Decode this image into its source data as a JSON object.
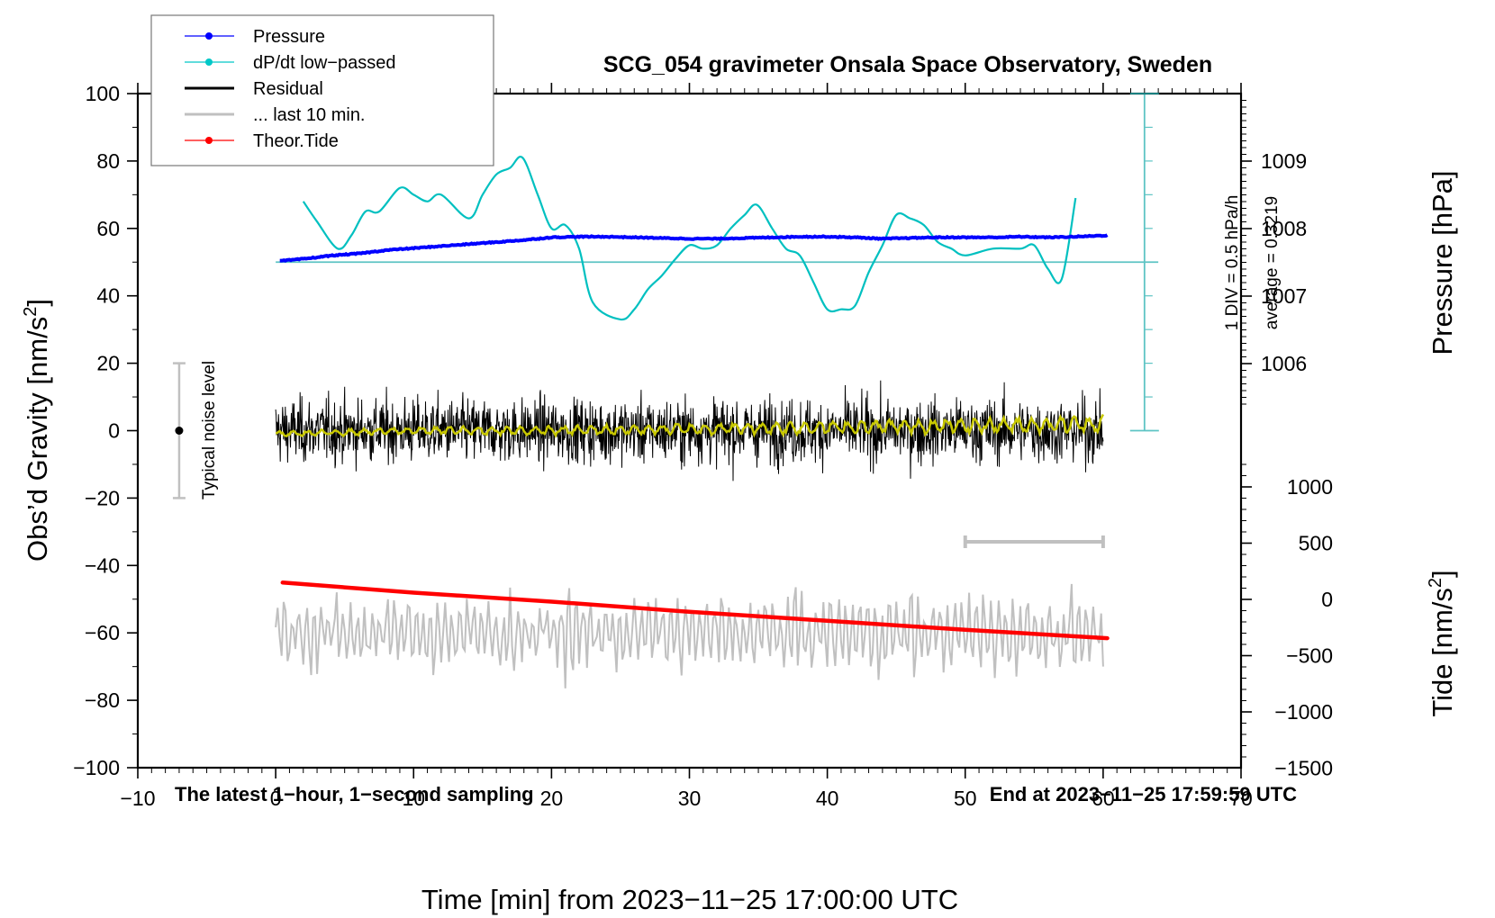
{
  "chart_data": {
    "type": "line",
    "title": "SCG_054 gravimeter Onsala Space Observatory, Sweden",
    "xlabel": "Time [min] from 2023−11−25 17:00:00 UTC",
    "ylabel_left": "Obs’d Gravity [nm/s²]",
    "ylabel_left_base": "Obs’d Gravity [nm/s",
    "ylabel_right_pressure": "Pressure [hPa]",
    "ylabel_right_tide_base": "Tide [nm/s",
    "units_sup": "2",
    "xlim": [
      -10,
      70
    ],
    "ylim": [
      -100,
      100
    ],
    "pressure_lim": [
      1005,
      1010
    ],
    "tide_lim": [
      -1500,
      1500
    ],
    "x_ticks": [
      -10,
      0,
      10,
      20,
      30,
      40,
      50,
      60,
      70
    ],
    "x_tick_labels": [
      "−10",
      "0",
      "10",
      "20",
      "30",
      "40",
      "50",
      "60",
      "70"
    ],
    "y_ticks": [
      100,
      80,
      60,
      40,
      20,
      0,
      -20,
      -40,
      -60,
      -80,
      -100
    ],
    "y_tick_labels": [
      "100",
      "80",
      "60",
      "40",
      "20",
      "0",
      "−20",
      "−40",
      "−60",
      "−80",
      "−100"
    ],
    "pressure_ticks": [
      1009,
      1008,
      1007,
      1006
    ],
    "pressure_tick_labels": [
      "1009",
      "1008",
      "1007",
      "1006"
    ],
    "tide_ticks": [
      1000,
      500,
      0,
      -500,
      -1000,
      -1500
    ],
    "tide_tick_labels": [
      "1000",
      "500",
      "0",
      "−500",
      "−1000",
      "−1500"
    ],
    "grid": false,
    "legend_position": "top-left",
    "legend": [
      {
        "label": "Pressure",
        "color": "#0000ff",
        "marker": true,
        "style": "thin"
      },
      {
        "label": "dP/dt low−passed",
        "color": "#00c8c8",
        "marker": true,
        "style": "thin"
      },
      {
        "label": "Residual",
        "color": "#000000",
        "marker": false,
        "style": "thick"
      },
      {
        "label": "... last 10 min.",
        "color": "#c0c0c0",
        "marker": false,
        "style": "thick"
      },
      {
        "label": "Theor.Tide",
        "color": "#ff0000",
        "marker": true,
        "style": "thin"
      }
    ],
    "annotations": {
      "dpdt_scale": "1 DIV = 0.5 hPa/h",
      "dpdt_average": "average = 0.3219",
      "noise_label": "Typical noise level",
      "noise_level_range": [
        -20,
        20
      ],
      "noise_x": -7,
      "last10_bar_range_min": [
        50,
        60
      ],
      "footer_left": "The latest 1−hour, 1−second sampling",
      "footer_right": "End at 2023−11−25 17:59:59 UTC"
    },
    "dpdt_axis": {
      "x_min": 63,
      "zero_at_gravity": 50,
      "div_in_gravity_units": 10,
      "hpa_per_h_per_div": 0.5,
      "zero_line_x_range": [
        0,
        64
      ]
    },
    "series": [
      {
        "name": "Pressure",
        "axis": "pressure_hPa",
        "color": "#0000ff",
        "x": [
          0.3,
          2,
          4,
          6,
          8,
          10,
          12,
          14,
          16,
          18,
          20,
          22,
          24,
          26,
          28,
          30,
          32,
          34,
          36,
          38,
          40,
          42,
          44,
          46,
          48,
          50,
          52,
          54,
          56,
          58,
          60.3
        ],
        "values": [
          1007.52,
          1007.55,
          1007.6,
          1007.63,
          1007.68,
          1007.71,
          1007.74,
          1007.77,
          1007.8,
          1007.83,
          1007.87,
          1007.88,
          1007.88,
          1007.87,
          1007.86,
          1007.85,
          1007.85,
          1007.86,
          1007.87,
          1007.88,
          1007.88,
          1007.87,
          1007.85,
          1007.86,
          1007.87,
          1007.87,
          1007.87,
          1007.88,
          1007.87,
          1007.88,
          1007.9
        ]
      },
      {
        "name": "dP/dt low-passed",
        "axis": "gravity_display",
        "color": "#00c8c8",
        "x": [
          2,
          3,
          4.5,
          5.5,
          6.5,
          7.5,
          9,
          10,
          11,
          12,
          14,
          15,
          16,
          17,
          17.9,
          19,
          20,
          21,
          22,
          23,
          25,
          26,
          27,
          28,
          29,
          30,
          31,
          32,
          33,
          34,
          34.9,
          36,
          37,
          38,
          39,
          40,
          41,
          42,
          43,
          44,
          45,
          46,
          47,
          48,
          49,
          50,
          52,
          54,
          55,
          56,
          57,
          58
        ],
        "values": [
          68,
          62,
          54,
          58,
          65,
          65,
          72,
          70,
          68,
          70,
          63,
          70,
          76,
          78,
          81,
          70,
          60,
          61,
          54,
          38,
          33,
          36,
          42,
          46,
          51,
          55,
          54,
          55,
          60,
          64,
          67,
          60,
          54,
          52,
          44,
          36,
          36,
          37,
          47,
          55,
          64,
          63,
          61,
          56,
          54,
          52,
          54,
          54,
          55,
          48,
          45,
          69
        ]
      },
      {
        "name": "Residual",
        "axis": "gravity",
        "color": "#000000",
        "description": "1-second residual noise, roughly symmetric about 0",
        "x_range": [
          0,
          60
        ],
        "envelope": [
          -20,
          22
        ],
        "min": -27,
        "max": 23
      },
      {
        "name": "Residual smoothed",
        "axis": "gravity",
        "color": "#c8c800",
        "x": [
          0,
          10,
          20,
          30,
          40,
          50,
          60
        ],
        "values": [
          -1,
          0,
          0,
          0.5,
          1,
          1.5,
          2
        ]
      },
      {
        "name": "... last 10 min.",
        "axis": "gravity_display_offset",
        "color": "#c0c0c0",
        "description": "last 10 minutes of residual, expanded to full width and offset to about -60",
        "offset": -60,
        "x_range": [
          0,
          60
        ],
        "envelope": [
          -82,
          -41
        ]
      },
      {
        "name": "Theor.Tide",
        "axis": "tide_nm_s2",
        "color": "#ff0000",
        "x": [
          0.5,
          10,
          20,
          30,
          40,
          50,
          60.3
        ],
        "values": [
          150,
          60,
          -20,
          -110,
          -190,
          -270,
          -345
        ]
      }
    ]
  }
}
